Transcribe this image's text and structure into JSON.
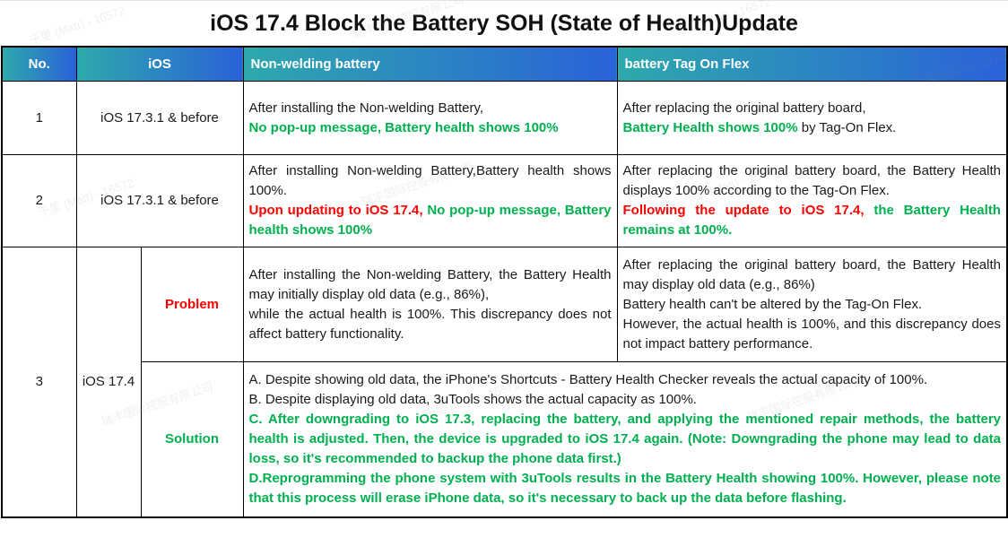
{
  "title": "iOS 17.4 Block the Battery SOH (State of Health)Update",
  "colors": {
    "header_gradient_left": "#2EA9AC",
    "header_gradient_right": "#2A62D9",
    "highlight_green": "#00B050",
    "highlight_red": "#FF0000",
    "header_text": "#FFFFFF",
    "body_text": "#1A1A1A"
  },
  "header": {
    "col_no": "No.",
    "col_ios": "iOS",
    "col_nonwelding": "Non-welding battery",
    "col_tagonflex": "battery Tag On Flex"
  },
  "rows": {
    "r1": {
      "no": "1",
      "ios": "iOS 17.3.1 & before",
      "nw_p1": "After installing the Non-welding Battery,",
      "nw_p2_green": "No pop-up message, Battery health shows 100%",
      "tf_p1": "After replacing the original battery board,",
      "tf_p2_green": "Battery Health shows 100%",
      "tf_p2_black": " by Tag-On Flex."
    },
    "r2": {
      "no": "2",
      "ios": "iOS 17.3.1 & before",
      "nw_p1": "After installing Non-welding Battery,Battery health shows 100%.",
      "nw_p2_red": "Upon updating to iOS 17.4,",
      "nw_p2_green": " No pop-up message, Battery health shows 100%",
      "tf_p1": "After replacing the original battery board, the Battery Health displays 100% according to the Tag-On Flex.",
      "tf_p2_red": "Following the update to iOS 17.4,",
      "tf_p2_green": " the Battery Health remains at 100%."
    },
    "r3": {
      "no": "3",
      "ios": "iOS 17.4",
      "problem_label": "Problem",
      "solution_label": "Solution",
      "problem_nw_p1": "After installing the Non-welding Battery, the Battery Health may initially display old data (e.g., 86%),",
      "problem_nw_p2": "while the actual health is 100%. This discrepancy does not affect battery functionality.",
      "problem_tf_p1": "After replacing the original battery board, the Battery Health may display old data (e.g., 86%)",
      "problem_tf_p2": "Battery health can't be altered by the Tag-On Flex.",
      "problem_tf_p3": "However, the actual health is 100%, and this discrepancy does not impact battery performance.",
      "sol_a": "A. Despite showing old data, the iPhone's Shortcuts - Battery Health Checker reveals the actual capacity of 100%.",
      "sol_b": "B. Despite displaying old data, 3uTools shows the actual capacity as 100%.",
      "sol_c": "C. After downgrading to iOS 17.3, replacing the battery, and applying the mentioned repair methods, the battery health is adjusted. Then, the device is upgraded to iOS 17.4 again. (Note: Downgrading the phone may lead to data loss, so it's recommended to backup the phone data first.)",
      "sol_d": "D.Reprogramming the phone system with 3uTools results in the Battery Health showing 100%. However, please note that this process will erase iPhone data, so it's necessary to back up the data before flashing."
    }
  },
  "watermark": {
    "user": "千里 (Matt) - 16572",
    "company": "瑞丰国际控股有限公司"
  }
}
